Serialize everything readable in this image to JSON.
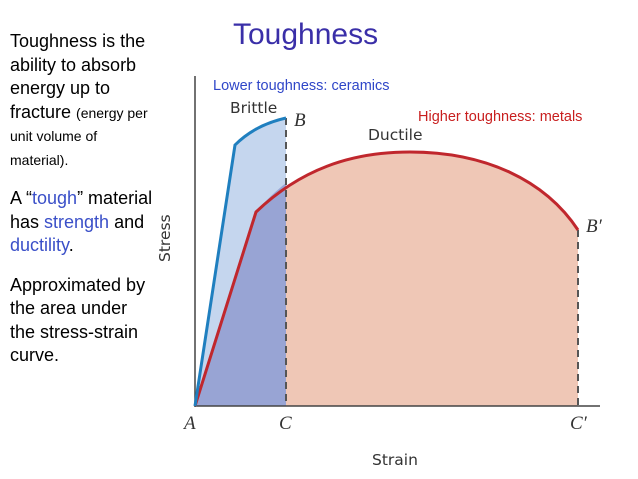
{
  "title": "Toughness",
  "left_text": {
    "p1_main": "Toughness is the ability to absorb energy up to fracture ",
    "p1_small": "(energy per unit volume of material).",
    "p2_a": "A “",
    "p2_tough": "tough",
    "p2_b": "” material has ",
    "p2_strength": "strength",
    "p2_c": " and ",
    "p2_ductility": "ductility",
    "p2_d": ".",
    "p3": "Approximated by the area under the stress-strain curve."
  },
  "annotations": {
    "lower": "Lower toughness: ceramics",
    "higher": "Higher toughness: metals"
  },
  "diagram": {
    "ylabel": "Stress",
    "xlabel": "Strain",
    "brittle_label": "Brittle",
    "ductile_label": "Ductile",
    "point_a": "A",
    "point_b": "B",
    "point_b_prime": "B′",
    "point_c": "C",
    "point_c_prime": "C′"
  },
  "colors": {
    "title": "#3a2fa8",
    "brittle_curve": "#1f7fbf",
    "ductile_curve": "#c0272d",
    "brittle_fill": "#c5d6ee",
    "ductile_fill": "#efc7b6",
    "overlap_fill": "#98a4d4"
  }
}
